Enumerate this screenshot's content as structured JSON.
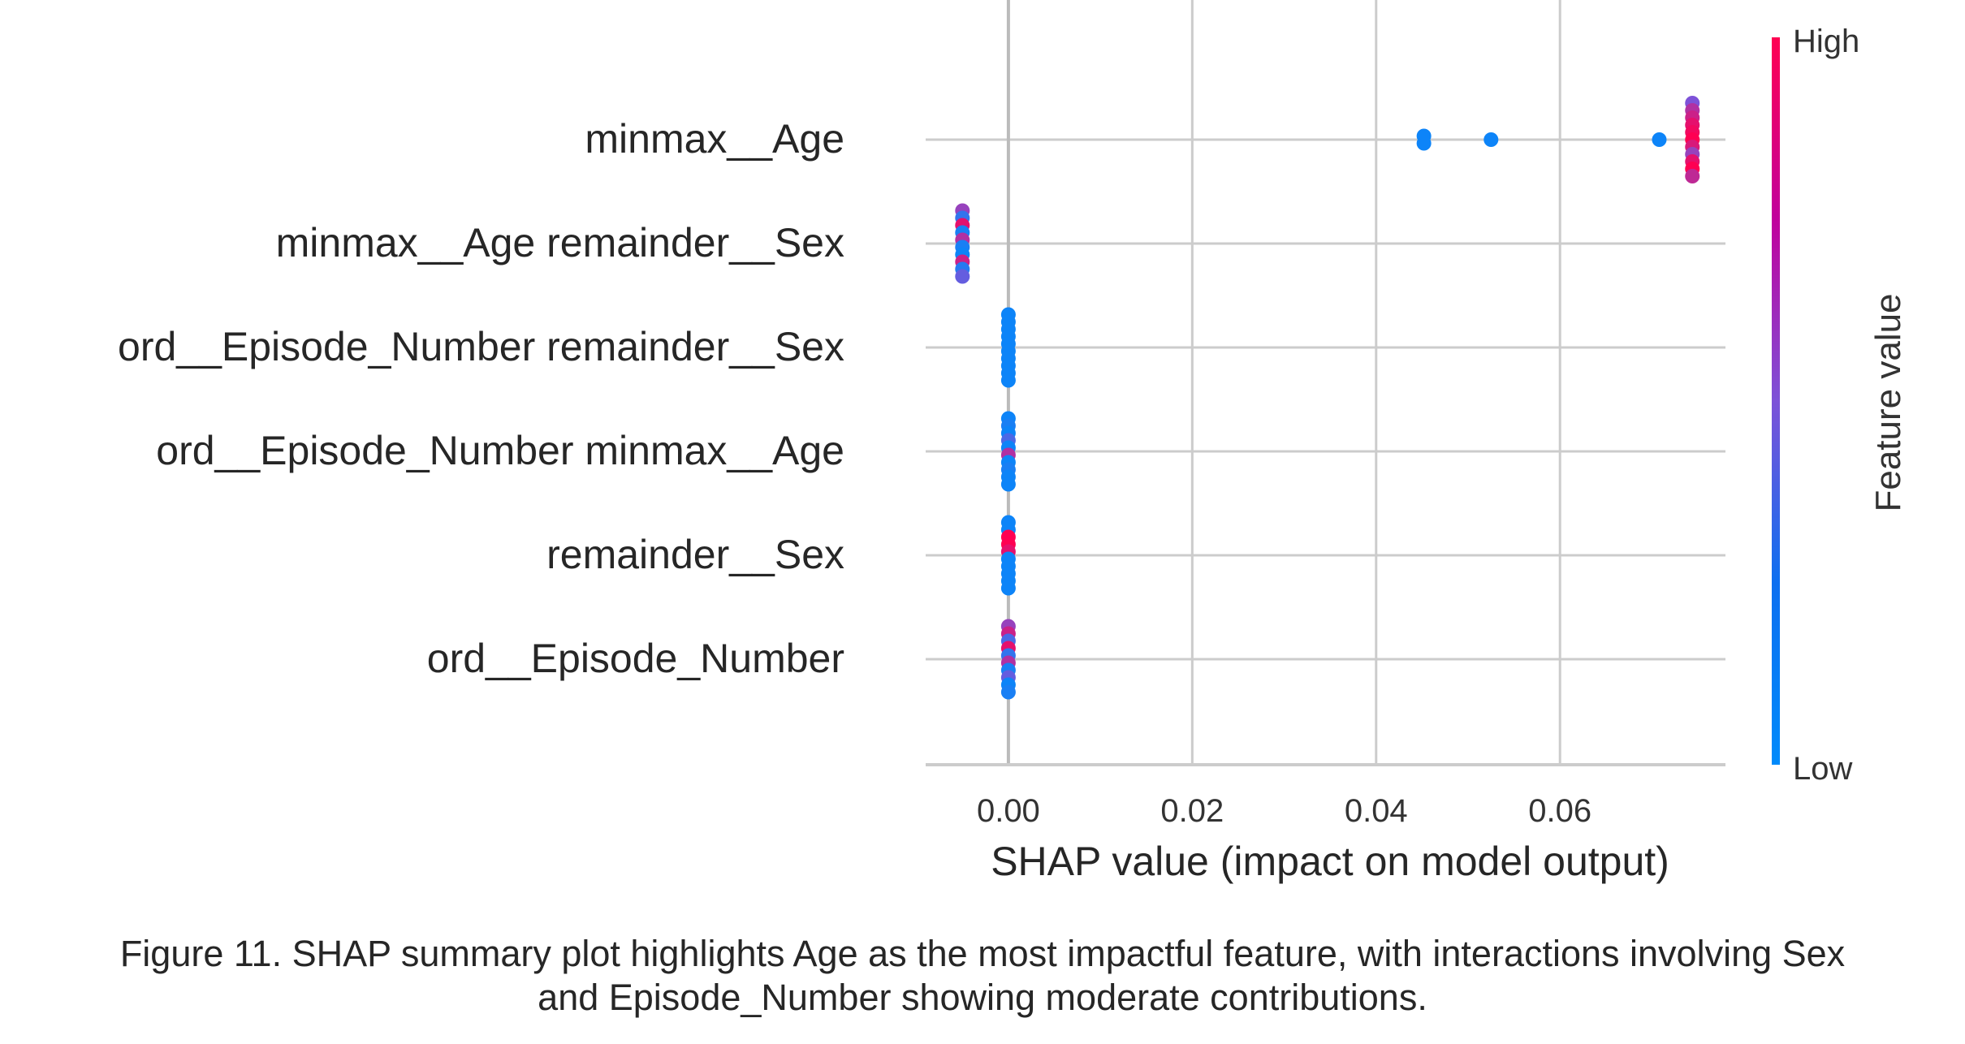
{
  "chart_data": {
    "type": "scatter",
    "subtype": "shap-summary-beeswarm",
    "title": "",
    "xlabel": "SHAP value (impact on model output)",
    "ylabel": "",
    "xlim": [
      -0.009,
      0.078
    ],
    "xticks": [
      {
        "value": 0.0,
        "label": "0.00"
      },
      {
        "value": 0.02,
        "label": "0.02"
      },
      {
        "value": 0.04,
        "label": "0.04"
      },
      {
        "value": 0.06,
        "label": "0.06"
      }
    ],
    "grid": true,
    "colorbar": {
      "label": "Feature value",
      "high_label": "High",
      "low_label": "Low",
      "low_color": "#008afb",
      "high_color": "#ff0052"
    },
    "features": [
      {
        "name": "minmax__Age",
        "points": [
          {
            "x": 0.0452,
            "f": 0.05
          },
          {
            "x": 0.0452,
            "f": 0.05
          },
          {
            "x": 0.0525,
            "f": 0.05
          },
          {
            "x": 0.0708,
            "f": 0.05
          },
          {
            "x": 0.0744,
            "f": 0.5
          },
          {
            "x": 0.0744,
            "f": 0.7
          },
          {
            "x": 0.0744,
            "f": 0.8
          },
          {
            "x": 0.0744,
            "f": 0.9
          },
          {
            "x": 0.0744,
            "f": 0.95
          },
          {
            "x": 0.0744,
            "f": 1.0
          },
          {
            "x": 0.0744,
            "f": 0.85
          },
          {
            "x": 0.0744,
            "f": 0.6
          },
          {
            "x": 0.0744,
            "f": 0.9
          },
          {
            "x": 0.0744,
            "f": 1.0
          },
          {
            "x": 0.0744,
            "f": 0.75
          }
        ]
      },
      {
        "name": "minmax__Age remainder__Sex",
        "points": [
          {
            "x": -0.005,
            "f": 0.6
          },
          {
            "x": -0.005,
            "f": 0.2
          },
          {
            "x": -0.005,
            "f": 0.9
          },
          {
            "x": -0.005,
            "f": 0.1
          },
          {
            "x": -0.005,
            "f": 0.7
          },
          {
            "x": -0.005,
            "f": 0.1
          },
          {
            "x": -0.005,
            "f": 0.05
          },
          {
            "x": -0.005,
            "f": 0.8
          },
          {
            "x": -0.005,
            "f": 0.15
          },
          {
            "x": -0.005,
            "f": 0.4
          }
        ]
      },
      {
        "name": "ord__Episode_Number remainder__Sex",
        "points": [
          {
            "x": 0.0,
            "f": 0.05
          },
          {
            "x": 0.0,
            "f": 0.05
          },
          {
            "x": 0.0,
            "f": 0.05
          },
          {
            "x": 0.0,
            "f": 0.05
          },
          {
            "x": 0.0,
            "f": 0.05
          },
          {
            "x": 0.0,
            "f": 0.05
          },
          {
            "x": 0.0,
            "f": 0.05
          },
          {
            "x": 0.0,
            "f": 0.05
          },
          {
            "x": 0.0,
            "f": 0.05
          },
          {
            "x": 0.0,
            "f": 0.05
          }
        ]
      },
      {
        "name": "ord__Episode_Number minmax__Age",
        "points": [
          {
            "x": 0.0,
            "f": 0.05
          },
          {
            "x": 0.0,
            "f": 0.1
          },
          {
            "x": 0.0,
            "f": 0.05
          },
          {
            "x": 0.0,
            "f": 0.3
          },
          {
            "x": 0.0,
            "f": 0.05
          },
          {
            "x": 0.0,
            "f": 0.7
          },
          {
            "x": 0.0,
            "f": 0.05
          },
          {
            "x": 0.0,
            "f": 0.1
          },
          {
            "x": 0.0,
            "f": 0.05
          },
          {
            "x": 0.0,
            "f": 0.05
          }
        ]
      },
      {
        "name": "remainder__Sex",
        "points": [
          {
            "x": 0.0,
            "f": 0.05
          },
          {
            "x": 0.0,
            "f": 0.05
          },
          {
            "x": 0.0,
            "f": 1.0
          },
          {
            "x": 0.0,
            "f": 1.0
          },
          {
            "x": 0.0,
            "f": 0.9
          },
          {
            "x": 0.0,
            "f": 0.05
          },
          {
            "x": 0.0,
            "f": 0.05
          },
          {
            "x": 0.0,
            "f": 0.05
          },
          {
            "x": 0.0,
            "f": 0.05
          },
          {
            "x": 0.0,
            "f": 0.05
          }
        ]
      },
      {
        "name": "ord__Episode_Number",
        "points": [
          {
            "x": 0.0,
            "f": 0.6
          },
          {
            "x": 0.0,
            "f": 0.8
          },
          {
            "x": 0.0,
            "f": 0.3
          },
          {
            "x": 0.0,
            "f": 0.9
          },
          {
            "x": 0.0,
            "f": 0.2
          },
          {
            "x": 0.0,
            "f": 0.7
          },
          {
            "x": 0.0,
            "f": 0.1
          },
          {
            "x": 0.0,
            "f": 0.4
          },
          {
            "x": 0.0,
            "f": 0.05
          },
          {
            "x": 0.0,
            "f": 0.1
          }
        ]
      }
    ]
  },
  "caption": {
    "line1": "Figure 11. SHAP summary plot highlights Age as the most impactful feature, with interactions involving Sex",
    "line2": "and Episode_Number showing moderate contributions."
  }
}
